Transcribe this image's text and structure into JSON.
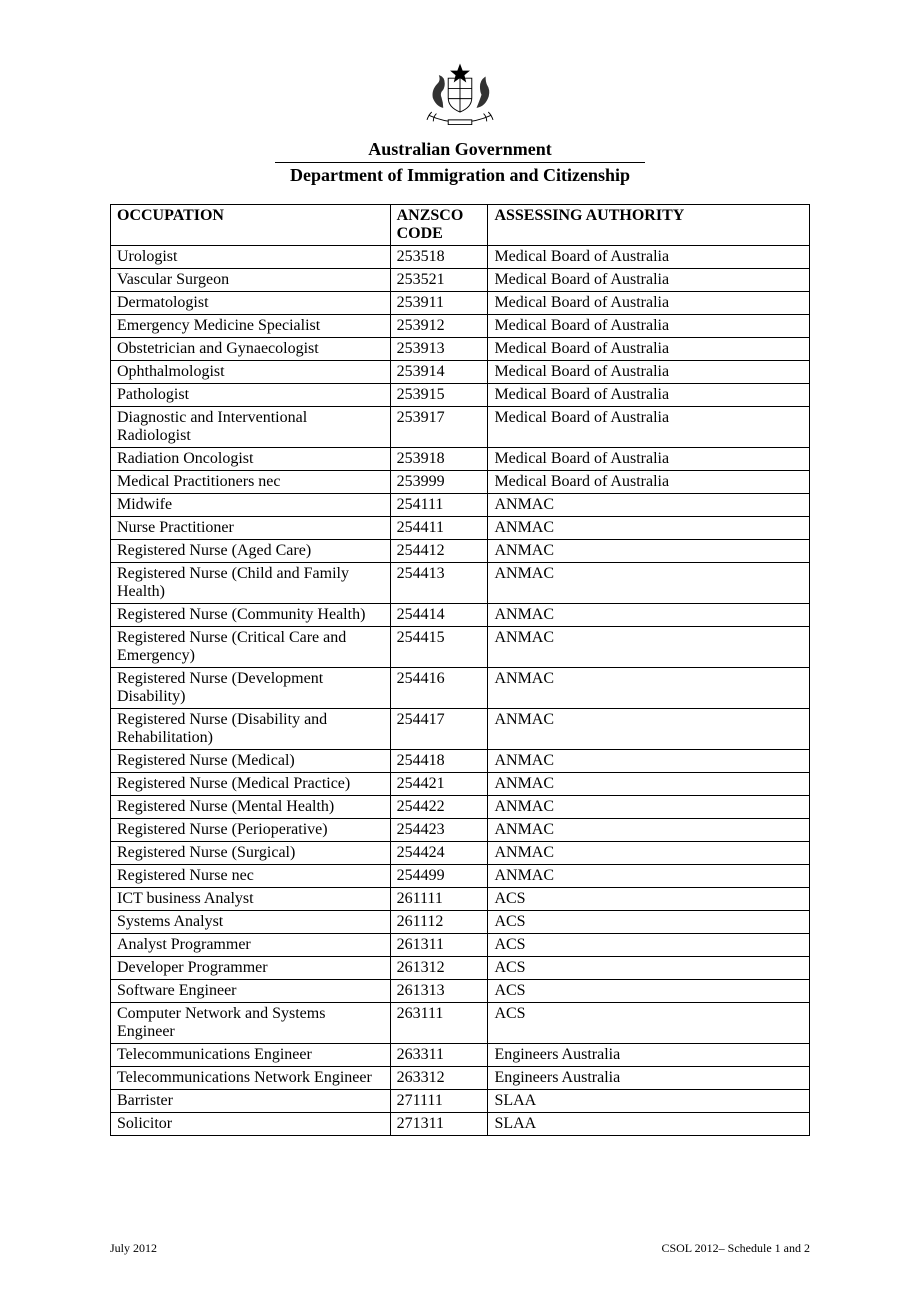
{
  "header": {
    "gov": "Australian Government",
    "dept": "Department of Immigration and Citizenship"
  },
  "table": {
    "columns": [
      "OCCUPATION",
      "ANZSCO CODE",
      "ASSESSING AUTHORITY"
    ],
    "rows": [
      [
        "Urologist",
        "253518",
        "Medical Board of Australia"
      ],
      [
        "Vascular Surgeon",
        "253521",
        "Medical Board of Australia"
      ],
      [
        "Dermatologist",
        "253911",
        "Medical Board of Australia"
      ],
      [
        "Emergency Medicine Specialist",
        "253912",
        "Medical Board of Australia"
      ],
      [
        "Obstetrician and Gynaecologist",
        "253913",
        "Medical Board of Australia"
      ],
      [
        "Ophthalmologist",
        "253914",
        "Medical Board of Australia"
      ],
      [
        "Pathologist",
        "253915",
        "Medical Board of Australia"
      ],
      [
        "Diagnostic and Interventional Radiologist",
        "253917",
        "Medical Board of Australia"
      ],
      [
        "Radiation Oncologist",
        "253918",
        "Medical Board of Australia"
      ],
      [
        "Medical Practitioners nec",
        "253999",
        "Medical Board of Australia"
      ],
      [
        "Midwife",
        "254111",
        "ANMAC"
      ],
      [
        "Nurse Practitioner",
        "254411",
        "ANMAC"
      ],
      [
        "Registered Nurse (Aged Care)",
        "254412",
        "ANMAC"
      ],
      [
        "Registered Nurse (Child and Family Health)",
        "254413",
        "ANMAC"
      ],
      [
        "Registered Nurse (Community Health)",
        "254414",
        "ANMAC"
      ],
      [
        "Registered Nurse (Critical Care and Emergency)",
        "254415",
        "ANMAC"
      ],
      [
        "Registered Nurse (Development Disability)",
        "254416",
        "ANMAC"
      ],
      [
        "Registered Nurse (Disability and Rehabilitation)",
        "254417",
        "ANMAC"
      ],
      [
        "Registered Nurse (Medical)",
        "254418",
        "ANMAC"
      ],
      [
        "Registered Nurse (Medical Practice)",
        "254421",
        "ANMAC"
      ],
      [
        "Registered Nurse (Mental Health)",
        "254422",
        "ANMAC"
      ],
      [
        "Registered Nurse (Perioperative)",
        "254423",
        "ANMAC"
      ],
      [
        "Registered Nurse (Surgical)",
        "254424",
        "ANMAC"
      ],
      [
        "Registered Nurse nec",
        "254499",
        "ANMAC"
      ],
      [
        "ICT business Analyst",
        "261111",
        "ACS"
      ],
      [
        "Systems Analyst",
        "261112",
        "ACS"
      ],
      [
        "Analyst Programmer",
        "261311",
        "ACS"
      ],
      [
        "Developer Programmer",
        "261312",
        "ACS"
      ],
      [
        "Software Engineer",
        "261313",
        "ACS"
      ],
      [
        "Computer Network and Systems Engineer",
        "263111",
        "ACS"
      ],
      [
        "Telecommunications Engineer",
        "263311",
        "Engineers Australia"
      ],
      [
        "Telecommunications Network Engineer",
        "263312",
        "Engineers Australia"
      ],
      [
        "Barrister",
        "271111",
        "SLAA"
      ],
      [
        "Solicitor",
        "271311",
        "SLAA"
      ]
    ]
  },
  "footer": {
    "left": "July 2012",
    "right": "CSOL 2012– Schedule 1 and 2"
  }
}
